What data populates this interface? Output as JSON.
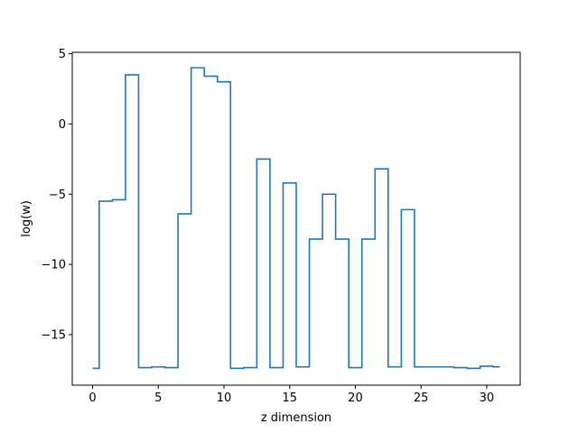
{
  "chart_data": {
    "type": "line",
    "drawstyle": "steps-mid",
    "title": "",
    "xlabel": "z dimension",
    "ylabel": "log(w)",
    "xlim": [
      -1.55,
      32.55
    ],
    "ylim": [
      -18.6,
      5.1
    ],
    "xticks": [
      0,
      5,
      10,
      15,
      20,
      25,
      30
    ],
    "xtick_labels": [
      "0",
      "5",
      "10",
      "15",
      "20",
      "25",
      "30"
    ],
    "yticks": [
      -15,
      -10,
      -5,
      0,
      5
    ],
    "ytick_labels": [
      "−15",
      "−10",
      "−5",
      "0",
      "5"
    ],
    "grid": false,
    "series": [
      {
        "color": "#1f77b4",
        "x": [
          0,
          1,
          2,
          3,
          4,
          5,
          6,
          7,
          8,
          9,
          10,
          11,
          12,
          13,
          14,
          15,
          16,
          17,
          18,
          19,
          20,
          21,
          22,
          23,
          24,
          25,
          26,
          27,
          28,
          29,
          30,
          31
        ],
        "values": [
          -17.4,
          -5.5,
          -5.4,
          3.5,
          -17.35,
          -17.3,
          -17.35,
          -6.4,
          4.0,
          3.4,
          3.0,
          -17.4,
          -17.35,
          -2.5,
          -17.35,
          -4.2,
          -17.3,
          -8.2,
          -5.0,
          -8.2,
          -17.35,
          -8.2,
          -3.2,
          -17.3,
          -6.1,
          -17.3,
          -17.3,
          -17.3,
          -17.35,
          -17.4,
          -17.25,
          -17.3
        ]
      }
    ]
  }
}
